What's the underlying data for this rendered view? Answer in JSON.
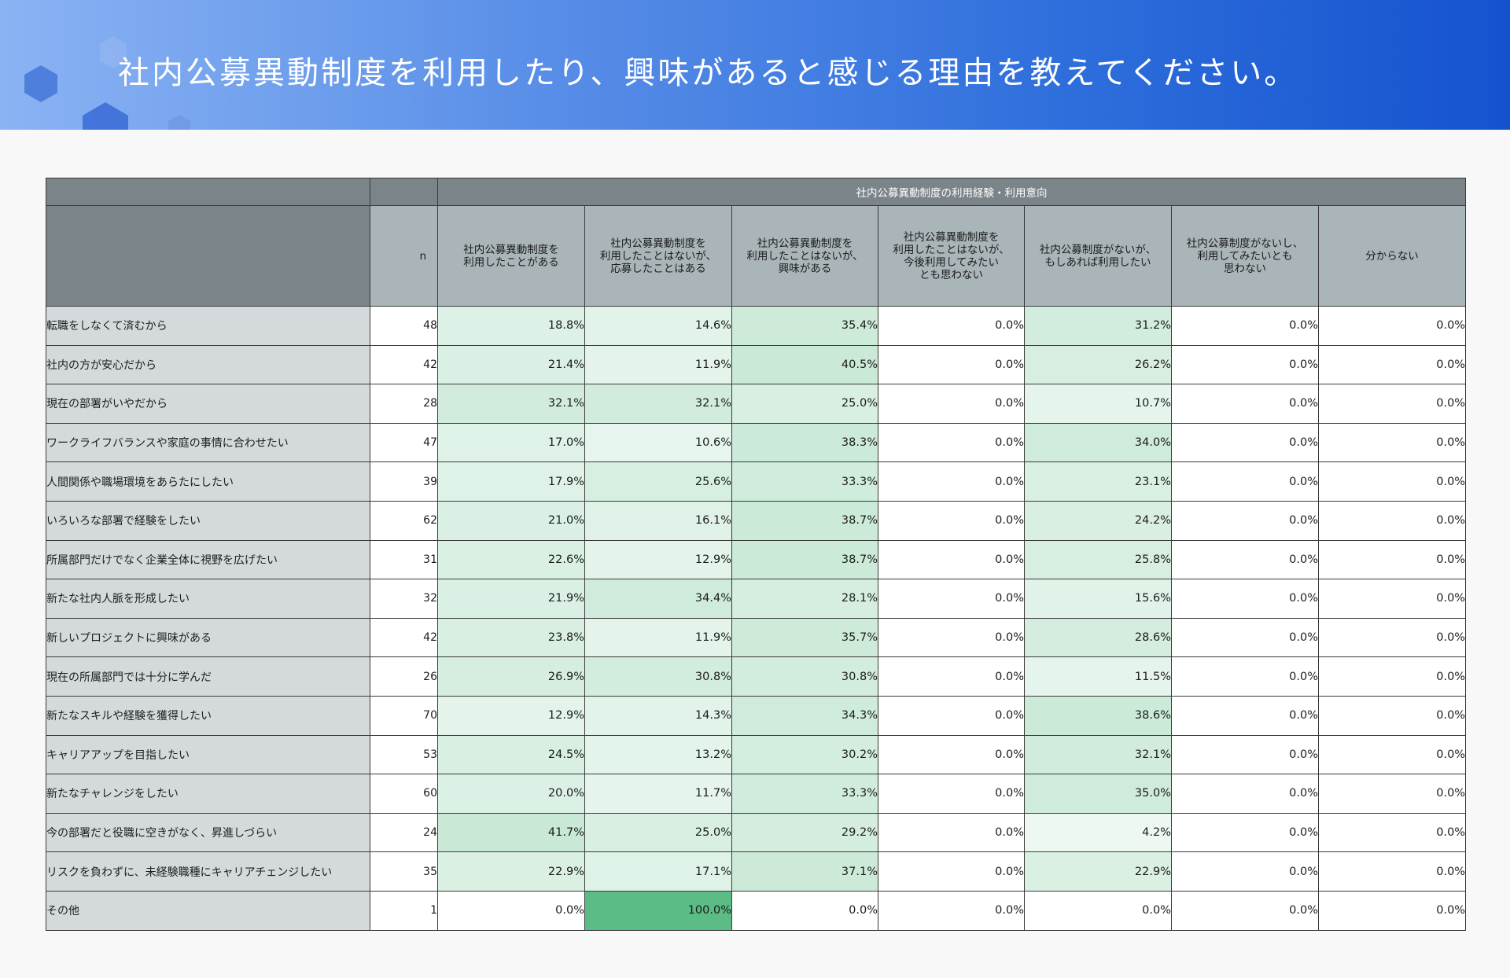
{
  "title": "社内公募異動制度を利用したり、興味があると感じる理由を教えてください。",
  "chart_data": {
    "type": "table",
    "group_header": "社内公募異動制度の利用経験・利用意向",
    "n_header": "n",
    "columns": [
      [
        "社内公募異動制度を",
        "利用したことがある"
      ],
      [
        "社内公募異動制度を",
        "利用したことはないが、",
        "応募したことはある"
      ],
      [
        "社内公募異動制度を",
        "利用したことはないが、",
        "興味がある"
      ],
      [
        "社内公募異動制度を",
        "利用したことはないが、",
        "今後利用してみたい",
        "とも思わない"
      ],
      [
        "社内公募制度がないが、",
        "もしあれば利用したい"
      ],
      [
        "社内公募制度がないし、",
        "利用してみたいとも",
        "思わない"
      ],
      [
        "分からない"
      ]
    ],
    "rows": [
      {
        "label": "転職をしなくて済むから",
        "n": 48,
        "values": [
          18.8,
          14.6,
          35.4,
          0.0,
          31.2,
          0.0,
          0.0
        ]
      },
      {
        "label": "社内の方が安心だから",
        "n": 42,
        "values": [
          21.4,
          11.9,
          40.5,
          0.0,
          26.2,
          0.0,
          0.0
        ]
      },
      {
        "label": "現在の部署がいやだから",
        "n": 28,
        "values": [
          32.1,
          32.1,
          25.0,
          0.0,
          10.7,
          0.0,
          0.0
        ]
      },
      {
        "label": "ワークライフバランスや家庭の事情に合わせたい",
        "n": 47,
        "values": [
          17.0,
          10.6,
          38.3,
          0.0,
          34.0,
          0.0,
          0.0
        ]
      },
      {
        "label": "人間関係や職場環境をあらたにしたい",
        "n": 39,
        "values": [
          17.9,
          25.6,
          33.3,
          0.0,
          23.1,
          0.0,
          0.0
        ]
      },
      {
        "label": "いろいろな部署で経験をしたい",
        "n": 62,
        "values": [
          21.0,
          16.1,
          38.7,
          0.0,
          24.2,
          0.0,
          0.0
        ]
      },
      {
        "label": "所属部門だけでなく企業全体に視野を広げたい",
        "n": 31,
        "values": [
          22.6,
          12.9,
          38.7,
          0.0,
          25.8,
          0.0,
          0.0
        ]
      },
      {
        "label": "新たな社内人脈を形成したい",
        "n": 32,
        "values": [
          21.9,
          34.4,
          28.1,
          0.0,
          15.6,
          0.0,
          0.0
        ]
      },
      {
        "label": "新しいプロジェクトに興味がある",
        "n": 42,
        "values": [
          23.8,
          11.9,
          35.7,
          0.0,
          28.6,
          0.0,
          0.0
        ]
      },
      {
        "label": "現在の所属部門では十分に学んだ",
        "n": 26,
        "values": [
          26.9,
          30.8,
          30.8,
          0.0,
          11.5,
          0.0,
          0.0
        ]
      },
      {
        "label": "新たなスキルや経験を獲得したい",
        "n": 70,
        "values": [
          12.9,
          14.3,
          34.3,
          0.0,
          38.6,
          0.0,
          0.0
        ]
      },
      {
        "label": "キャリアアップを目指したい",
        "n": 53,
        "values": [
          24.5,
          13.2,
          30.2,
          0.0,
          32.1,
          0.0,
          0.0
        ]
      },
      {
        "label": "新たなチャレンジをしたい",
        "n": 60,
        "values": [
          20.0,
          11.7,
          33.3,
          0.0,
          35.0,
          0.0,
          0.0
        ]
      },
      {
        "label": "今の部署だと役職に空きがなく、昇進しづらい",
        "n": 24,
        "values": [
          41.7,
          25.0,
          29.2,
          0.0,
          4.2,
          0.0,
          0.0
        ]
      },
      {
        "label": "リスクを負わずに、未経験職種にキャリアチェンジしたい",
        "n": 35,
        "values": [
          22.9,
          17.1,
          37.1,
          0.0,
          22.9,
          0.0,
          0.0
        ]
      },
      {
        "label": "その他",
        "n": 1,
        "values": [
          0.0,
          100.0,
          0.0,
          0.0,
          0.0,
          0.0,
          0.0
        ]
      }
    ],
    "value_format": "percent_1dp",
    "heatmap_color_low": "#ffffff",
    "heatmap_color_high": "#5cbc85"
  }
}
